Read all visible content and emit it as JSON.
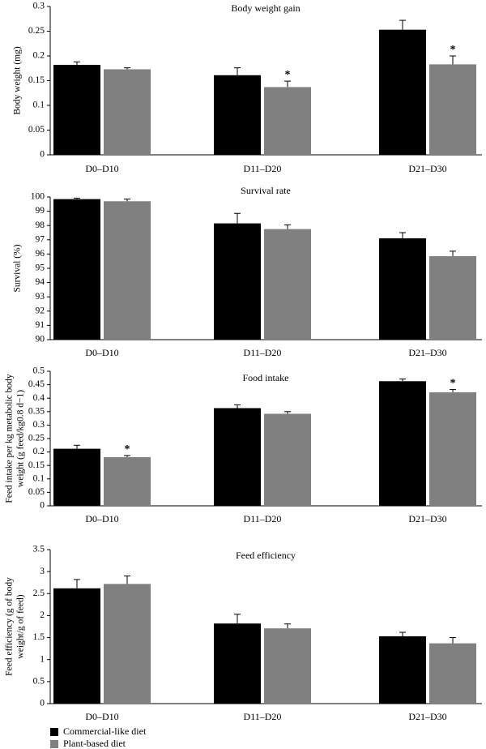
{
  "legend": {
    "items": [
      {
        "label": "Commercial-like diet",
        "color": "#000000"
      },
      {
        "label": "Plant-based diet",
        "color": "#808080"
      }
    ]
  },
  "chart_data": [
    {
      "type": "bar",
      "title": "Body weight gain",
      "ylabel": "Body weight (mg)",
      "ylabel_lines": [
        "Body weight (mg)"
      ],
      "ylim": [
        0,
        0.3
      ],
      "yticks": [
        "0",
        "0.05",
        "0.1",
        "0.15",
        "0.2",
        "0.25",
        "0.3"
      ],
      "ytick_values": [
        0,
        0.05,
        0.1,
        0.15,
        0.2,
        0.25,
        0.3
      ],
      "categories": [
        "D0–D10",
        "D11–D20",
        "D21–D30"
      ],
      "series": [
        {
          "name": "Commercial-like diet",
          "color": "#000000",
          "values": [
            0.182,
            0.161,
            0.253
          ],
          "errors": [
            0.006,
            0.015,
            0.019
          ],
          "sig": [
            "",
            "",
            ""
          ]
        },
        {
          "name": "Plant-based diet",
          "color": "#808080",
          "values": [
            0.173,
            0.137,
            0.183
          ],
          "errors": [
            0.003,
            0.012,
            0.017
          ],
          "sig": [
            "",
            "*",
            "*"
          ]
        }
      ]
    },
    {
      "type": "bar",
      "title": "Survival rate",
      "ylabel": "Survival (%)",
      "ylabel_lines": [
        "Survival (%)"
      ],
      "ylim": [
        90,
        100
      ],
      "yticks": [
        "90",
        "91",
        "92",
        "93",
        "94",
        "95",
        "96",
        "97",
        "98",
        "99",
        "100"
      ],
      "ytick_values": [
        90,
        91,
        92,
        93,
        94,
        95,
        96,
        97,
        98,
        99,
        100
      ],
      "categories": [
        "D0–D10",
        "D11–D20",
        "D21–D30"
      ],
      "series": [
        {
          "name": "Commercial-like diet",
          "color": "#000000",
          "values": [
            99.85,
            98.15,
            97.1
          ],
          "errors": [
            0.07,
            0.7,
            0.4
          ],
          "sig": [
            "",
            "",
            ""
          ]
        },
        {
          "name": "Plant-based diet",
          "color": "#808080",
          "values": [
            99.7,
            97.75,
            95.85
          ],
          "errors": [
            0.15,
            0.3,
            0.35
          ],
          "sig": [
            "",
            "",
            ""
          ]
        }
      ]
    },
    {
      "type": "bar",
      "title": "Food intake",
      "ylabel": "Feed intake per kg metabolic body weight (g feed/kg0.8 d−1)",
      "ylabel_lines": [
        "Feed intake per kg metabolic body",
        "weight (g feed/kg0.8 d−1)"
      ],
      "ylim": [
        0,
        0.5
      ],
      "yticks": [
        "0",
        "0.05",
        "0.1",
        "0.15",
        "0.2",
        "0.25",
        "0.3",
        "0.35",
        "0.4",
        "0.45",
        "0.5"
      ],
      "ytick_values": [
        0,
        0.05,
        0.1,
        0.15,
        0.2,
        0.25,
        0.3,
        0.35,
        0.4,
        0.45,
        0.5
      ],
      "categories": [
        "D0–D10",
        "D11–D20",
        "D21–D30"
      ],
      "series": [
        {
          "name": "Commercial-like diet",
          "color": "#000000",
          "values": [
            0.212,
            0.363,
            0.463
          ],
          "errors": [
            0.013,
            0.012,
            0.008
          ],
          "sig": [
            "",
            "",
            ""
          ]
        },
        {
          "name": "Plant-based diet",
          "color": "#808080",
          "values": [
            0.181,
            0.342,
            0.422
          ],
          "errors": [
            0.006,
            0.008,
            0.01
          ],
          "sig": [
            "*",
            "",
            "*"
          ]
        }
      ]
    },
    {
      "type": "bar",
      "title": "Feed efficiency",
      "ylabel": "Feed efficiency (g of body weight/g of feed)",
      "ylabel_lines": [
        "Feed efficiency (g of body",
        "weight/g of feed)"
      ],
      "ylim": [
        0,
        3.5
      ],
      "yticks": [
        "0",
        "0.5",
        "1",
        "1.5",
        "2",
        "2.5",
        "3",
        "3.5"
      ],
      "ytick_values": [
        0,
        0.5,
        1,
        1.5,
        2,
        2.5,
        3,
        3.5
      ],
      "categories": [
        "D0–D10",
        "D11–D20",
        "D21–D30"
      ],
      "series": [
        {
          "name": "Commercial-like diet",
          "color": "#000000",
          "values": [
            2.62,
            1.82,
            1.53
          ],
          "errors": [
            0.2,
            0.21,
            0.09
          ],
          "sig": [
            "",
            "",
            ""
          ]
        },
        {
          "name": "Plant-based diet",
          "color": "#808080",
          "values": [
            2.72,
            1.71,
            1.37
          ],
          "errors": [
            0.18,
            0.1,
            0.13
          ],
          "sig": [
            "",
            "",
            ""
          ]
        }
      ]
    }
  ]
}
